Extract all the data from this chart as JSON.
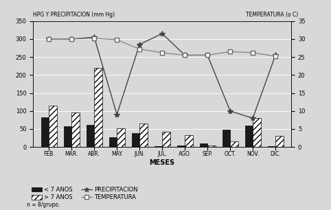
{
  "months": [
    "FEB.",
    "MAR.",
    "ABR.",
    "MAY.",
    "JUN.",
    "JUL.",
    "AGO.",
    "SEP.",
    "OCT.",
    "NOV.",
    "DIC."
  ],
  "young_bars": [
    82,
    58,
    62,
    28,
    38,
    2,
    5,
    10,
    48,
    60,
    2
  ],
  "old_bars": [
    115,
    95,
    220,
    52,
    65,
    42,
    32,
    5,
    15,
    80,
    30
  ],
  "precipitacion": [
    300,
    300,
    305,
    90,
    285,
    315,
    255,
    255,
    100,
    80,
    255
  ],
  "temperatura": [
    300,
    300,
    302,
    298,
    272,
    262,
    255,
    255,
    265,
    262,
    252
  ],
  "ylim_left": [
    0,
    350
  ],
  "ylim_right": [
    0,
    35
  ],
  "left_yticks": [
    0,
    50,
    100,
    150,
    200,
    250,
    300,
    350
  ],
  "right_yticks": [
    0,
    5,
    10,
    15,
    20,
    25,
    30,
    35
  ],
  "xlabel": "MESES",
  "title_left": "HPG Y PRECIPITACION (mm Hg)",
  "title_right": "TEMPERATURA (o C)",
  "bar_width": 0.35,
  "young_color": "#1a1a1a",
  "old_hatch": "////",
  "bg_color": "#d8d8d8",
  "note": "n = 8/grupo.",
  "legend_young": "< 7 ANOS",
  "legend_old": "> 7 ANOS",
  "legend_precip": "PRECIPITACION",
  "legend_temp": "TEMPERATURA"
}
